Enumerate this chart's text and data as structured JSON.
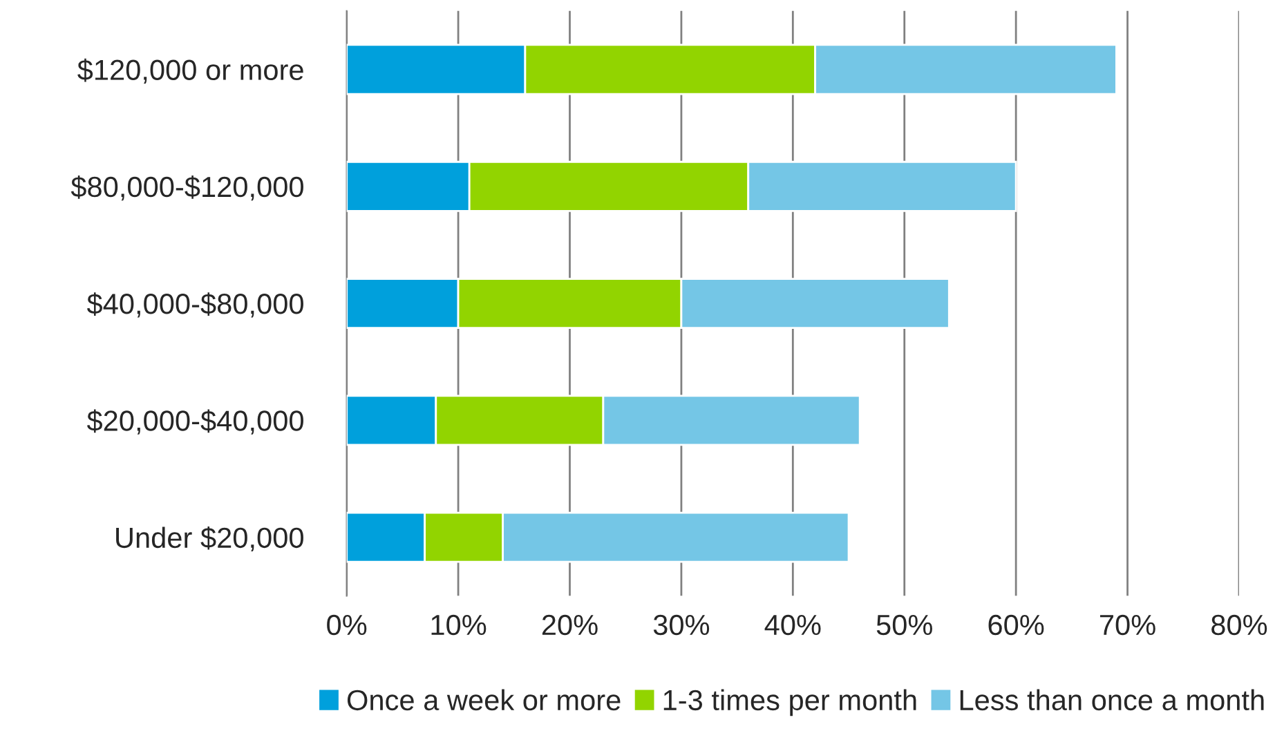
{
  "chart_data": {
    "type": "bar",
    "orientation": "horizontal",
    "stacked": true,
    "categories": [
      "$120,000 or more",
      "$80,000-$120,000",
      "$40,000-$80,000",
      "$20,000-$40,000",
      "Under $20,000"
    ],
    "series": [
      {
        "name": "Once a week or more",
        "color": "#00a0dc",
        "values": [
          16,
          11,
          10,
          8,
          7
        ]
      },
      {
        "name": "1-3 times per month",
        "color": "#92d400",
        "values": [
          26,
          25,
          20,
          15,
          7
        ]
      },
      {
        "name": "Less than once a month",
        "color": "#74c6e6",
        "values": [
          27,
          24,
          24,
          23,
          31
        ]
      }
    ],
    "xlim": [
      0,
      80
    ],
    "xticks": [
      {
        "value": 0,
        "label": "0%"
      },
      {
        "value": 10,
        "label": "10%"
      },
      {
        "value": 20,
        "label": "20%"
      },
      {
        "value": 30,
        "label": "30%"
      },
      {
        "value": 40,
        "label": "40%"
      },
      {
        "value": 50,
        "label": "50%"
      },
      {
        "value": 60,
        "label": "60%"
      },
      {
        "value": 70,
        "label": "70%"
      },
      {
        "value": 80,
        "label": "80%"
      }
    ],
    "grid": "x",
    "legend": "bottom"
  }
}
